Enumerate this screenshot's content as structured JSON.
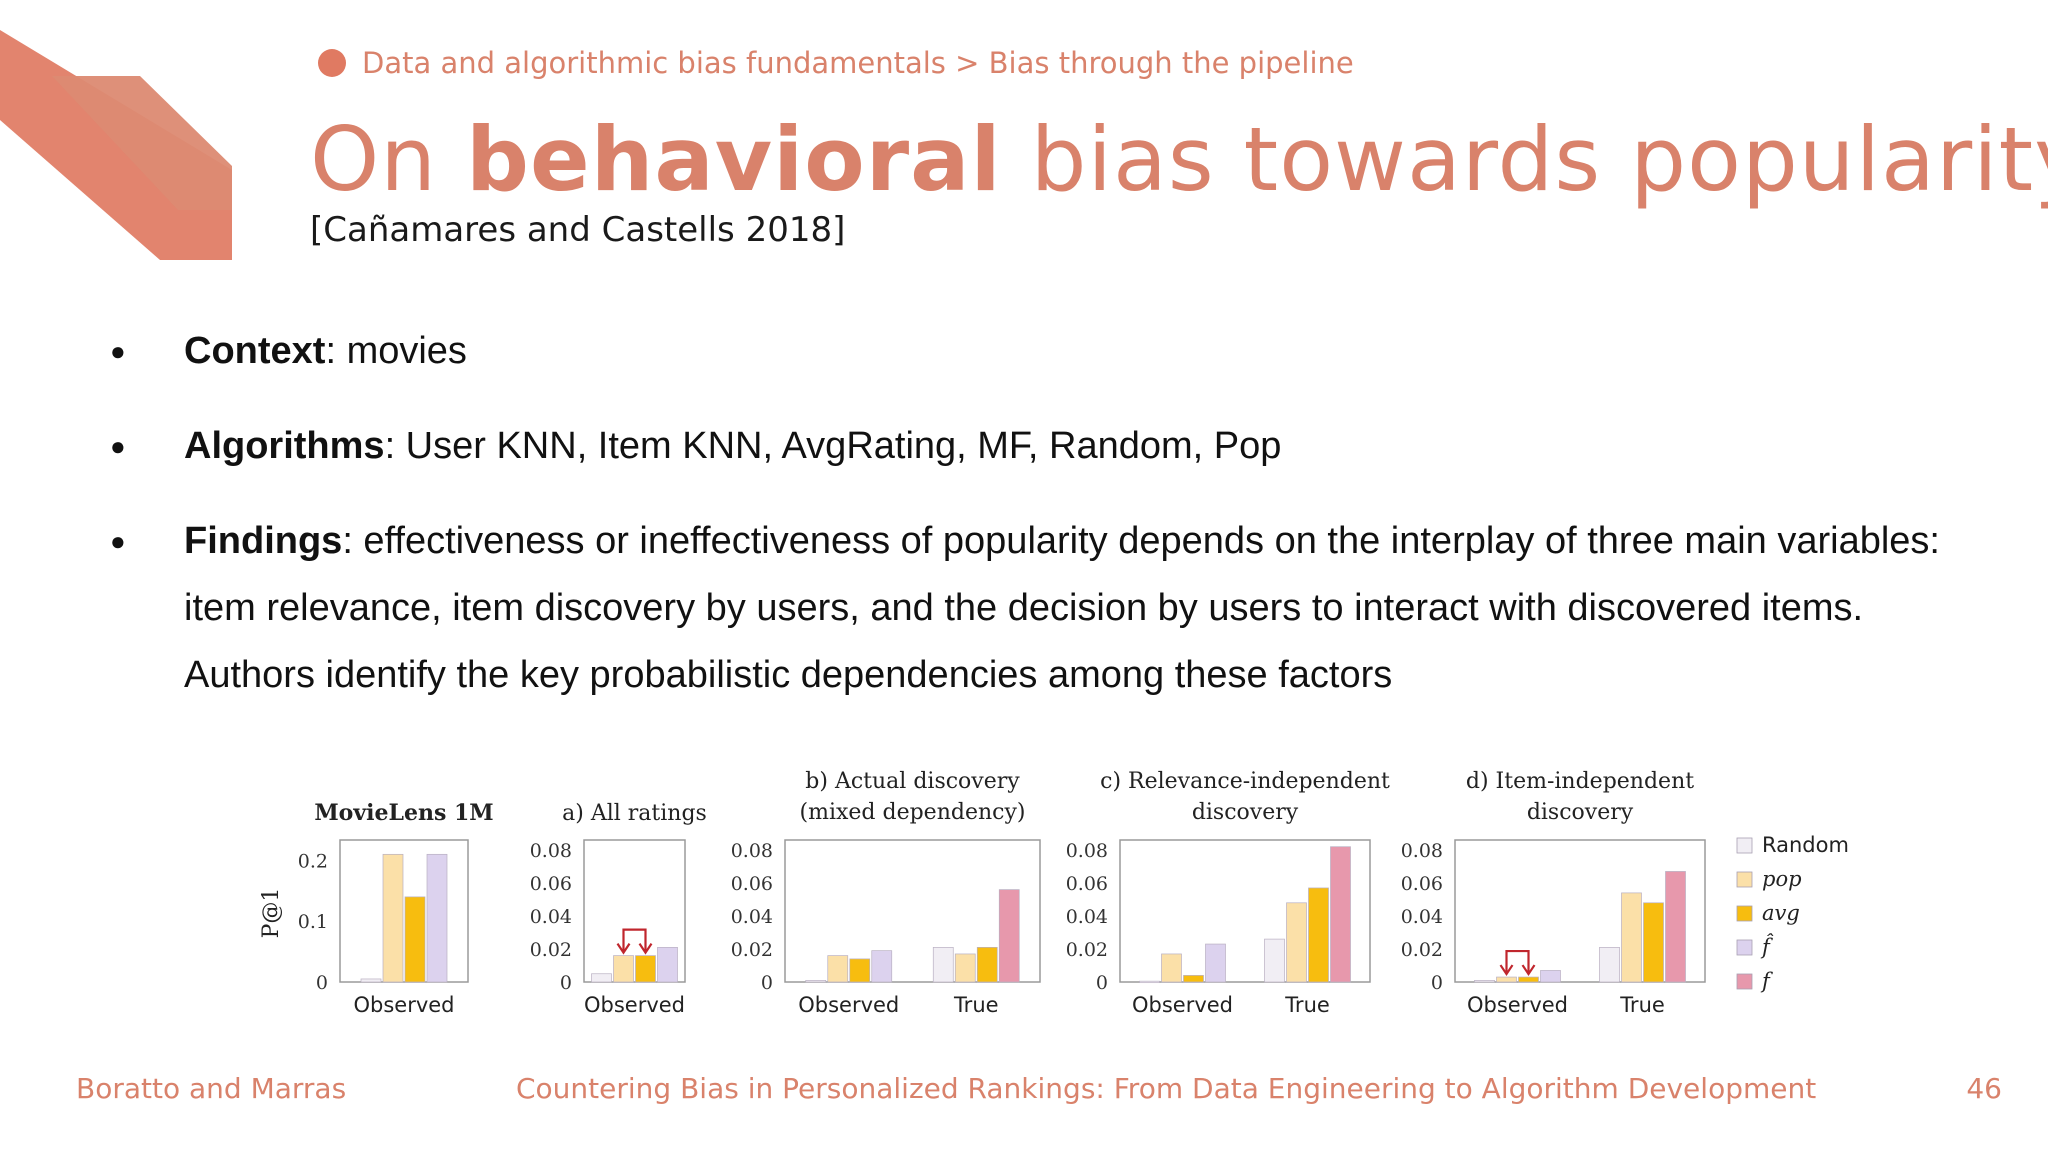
{
  "breadcrumb": "Data and algorithmic bias fundamentals > Bias through the pipeline",
  "title": {
    "prefix": "On ",
    "bold": "behavioral",
    "suffix": " bias towards popularity"
  },
  "citation": "[Cañamares and Castells 2018]",
  "bullets": [
    {
      "term": "Context",
      "text": ": movies"
    },
    {
      "term": "Algorithms",
      "text": ": User KNN, Item KNN, AvgRating, MF, Random, Pop"
    },
    {
      "term": "Findings",
      "text": ": effectiveness or ineffectiveness of popularity depends on the interplay of three main variables: item relevance, item discovery by users, and the decision by users to interact with discovered items. Authors identify the key probabilistic dependencies among these factors"
    }
  ],
  "footer": {
    "left": "Boratto and Marras",
    "center": "Countering Bias in Personalized Rankings: From Data Engineering to Algorithm Development",
    "page": "46"
  },
  "legend": [
    {
      "name": "Random",
      "color": "#f1eef4"
    },
    {
      "name": "pop",
      "color": "#fbe0a8"
    },
    {
      "name": "avg",
      "color": "#f7bd0f"
    },
    {
      "name": "f̂",
      "color": "#dcd2ee"
    },
    {
      "name": "f",
      "color": "#e798ac"
    }
  ],
  "chart_data": [
    {
      "type": "bar",
      "title": "MovieLens 1M",
      "ylabel": "P@1",
      "ylim": [
        0,
        0.25
      ],
      "yticks": [
        "0",
        "0.1",
        "0.2"
      ],
      "categories": [
        "Observed"
      ],
      "series": [
        {
          "name": "Random",
          "values": [
            0.005
          ]
        },
        {
          "name": "pop",
          "values": [
            0.21
          ]
        },
        {
          "name": "avg",
          "values": [
            0.14
          ]
        },
        {
          "name": "f̂",
          "values": [
            0.21
          ]
        }
      ]
    },
    {
      "type": "bar",
      "title": "a) All ratings",
      "ylim": [
        0,
        0.08
      ],
      "yticks": [
        "0",
        "0.02",
        "0.04",
        "0.06",
        "0.08"
      ],
      "categories": [
        "Observed"
      ],
      "series": [
        {
          "name": "Random",
          "values": [
            0.005
          ]
        },
        {
          "name": "pop",
          "values": [
            0.016
          ]
        },
        {
          "name": "avg",
          "values": [
            0.016
          ]
        },
        {
          "name": "f̂",
          "values": [
            0.021
          ]
        }
      ]
    },
    {
      "type": "bar",
      "title": "b) Actual discovery (mixed dependency)",
      "ylim": [
        0,
        0.08
      ],
      "yticks": [
        "0",
        "0.02",
        "0.04",
        "0.06",
        "0.08"
      ],
      "categories": [
        "Observed",
        "True"
      ],
      "series": [
        {
          "name": "Random",
          "values": [
            0.001,
            0.021
          ]
        },
        {
          "name": "pop",
          "values": [
            0.016,
            0.017
          ]
        },
        {
          "name": "avg",
          "values": [
            0.014,
            0.021
          ]
        },
        {
          "name": "f̂",
          "values": [
            0.019,
            null
          ]
        },
        {
          "name": "f",
          "values": [
            null,
            0.056
          ]
        }
      ]
    },
    {
      "type": "bar",
      "title": "c) Relevance-independent discovery",
      "ylim": [
        0,
        0.08
      ],
      "yticks": [
        "0",
        "0.02",
        "0.04",
        "0.06",
        "0.08"
      ],
      "categories": [
        "Observed",
        "True"
      ],
      "series": [
        {
          "name": "Random",
          "values": [
            0.0005,
            0.026
          ]
        },
        {
          "name": "pop",
          "values": [
            0.017,
            0.048
          ]
        },
        {
          "name": "avg",
          "values": [
            0.004,
            0.057
          ]
        },
        {
          "name": "f̂",
          "values": [
            0.023,
            null
          ]
        },
        {
          "name": "f",
          "values": [
            null,
            0.082
          ]
        }
      ]
    },
    {
      "type": "bar",
      "title": "d) Item-independent discovery",
      "ylim": [
        0,
        0.08
      ],
      "yticks": [
        "0",
        "0.02",
        "0.04",
        "0.06",
        "0.08"
      ],
      "categories": [
        "Observed",
        "True"
      ],
      "series": [
        {
          "name": "Random",
          "values": [
            0.001,
            0.021
          ]
        },
        {
          "name": "pop",
          "values": [
            0.003,
            0.054
          ]
        },
        {
          "name": "avg",
          "values": [
            0.003,
            0.048
          ]
        },
        {
          "name": "f̂",
          "values": [
            0.007,
            null
          ]
        },
        {
          "name": "f",
          "values": [
            null,
            0.067
          ]
        }
      ]
    }
  ]
}
